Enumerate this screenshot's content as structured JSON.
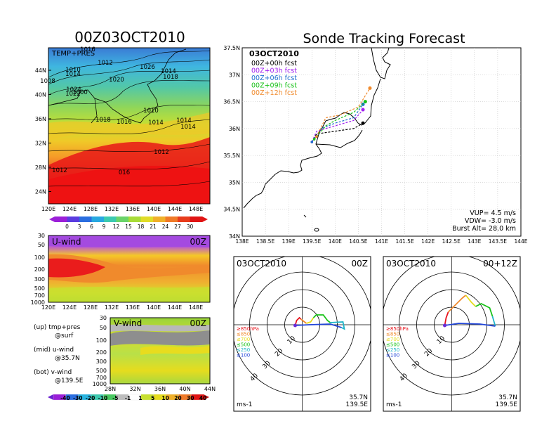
{
  "left": {
    "title": "00Z03OCT2010",
    "panel1": {
      "label": "TEMP+PRES",
      "lat_ticks": [
        "44N",
        "40N",
        "36N",
        "32N",
        "28N",
        "24N"
      ],
      "lon_ticks": [
        "120E",
        "124E",
        "128E",
        "132E",
        "136E",
        "140E",
        "144E",
        "148E"
      ],
      "isobars": [
        "1016",
        "1012",
        "1010",
        "1014",
        "1008",
        "1000",
        "1022",
        "1024",
        "1026",
        "1014",
        "1018",
        "1020",
        "1010",
        "1014",
        "1018",
        "1016",
        "1014",
        "1014",
        "1012",
        "016",
        "1012"
      ],
      "colorbar_ticks": [
        "0",
        "3",
        "6",
        "9",
        "12",
        "15",
        "18",
        "21",
        "24",
        "27",
        "30"
      ]
    },
    "panel2": {
      "label": "U-wind",
      "time": "00Z",
      "pressure_ticks": [
        "30",
        "50",
        "100",
        "200",
        "300",
        "500",
        "700",
        "1000"
      ],
      "lon_ticks": [
        "120E",
        "124E",
        "128E",
        "132E",
        "136E",
        "140E",
        "144E",
        "148E"
      ]
    },
    "panel3": {
      "label": "V-wind",
      "time": "00Z",
      "pressure_ticks": [
        "30",
        "50",
        "100",
        "200",
        "300",
        "500",
        "700",
        "1000"
      ],
      "lat_ticks": [
        "28N",
        "32N",
        "36N",
        "40N",
        "44N"
      ],
      "colorbar_ticks": [
        "-40",
        "-30",
        "-20",
        "-10",
        "-5",
        "-1",
        "1",
        "5",
        "10",
        "20",
        "30",
        "40"
      ]
    },
    "notes": {
      "up": "(up) tmp+pres",
      "up2": "@surf",
      "mid": "(mid) u-wind",
      "mid2": "@35.7N",
      "bot": "(bot) v-wind",
      "bot2": "@139.5E"
    }
  },
  "right": {
    "title": "Sonde Tracking Forecast",
    "map": {
      "date": "03OCT2010",
      "legend": [
        {
          "label": "00Z+00h fcst",
          "color": "#000000"
        },
        {
          "label": "00Z+03h fcst",
          "color": "#a020f0"
        },
        {
          "label": "00Z+06h fcst",
          "color": "#1e6fd0"
        },
        {
          "label": "00Z+09h fcst",
          "color": "#19c219"
        },
        {
          "label": "00Z+12h fcst",
          "color": "#f08a2c"
        }
      ],
      "lat_ticks": [
        "37.5N",
        "37N",
        "36.5N",
        "36N",
        "35.5N",
        "35N",
        "34.5N",
        "34N"
      ],
      "lon_ticks": [
        "138E",
        "138.5E",
        "139E",
        "139.5E",
        "140E",
        "140.5E",
        "141E",
        "141.5E",
        "142E",
        "142.5E",
        "143E",
        "143.5E",
        "144E"
      ],
      "info": {
        "vup": "VUP=  4.5 m/s",
        "vdw": "VDW= -3.0 m/s",
        "burst": "Burst Alt= 28.0 km"
      }
    },
    "hodo1": {
      "date": "03OCT2010",
      "time": "00Z",
      "unit": "ms-1",
      "loc1": "35.7N",
      "loc2": "139.5E",
      "ring_labels": [
        "10",
        "20",
        "30",
        "40"
      ]
    },
    "hodo2": {
      "date": "03OCT2010",
      "time": "00+12Z",
      "unit": "ms-1",
      "loc1": "35.7N",
      "loc2": "139.5E",
      "ring_labels": [
        "10",
        "20",
        "30",
        "40"
      ]
    },
    "hodo_legend": [
      {
        "label": "≥850hPa",
        "color": "#e8141e"
      },
      {
        "label": "≤850",
        "color": "#f08a2c"
      },
      {
        "label": "≤700",
        "color": "#e6dc1e"
      },
      {
        "label": "≤500",
        "color": "#19c219"
      },
      {
        "label": "≤250",
        "color": "#1eb4c8"
      },
      {
        "label": "≤100",
        "color": "#2246d8"
      }
    ]
  },
  "chart_data": [
    {
      "type": "heatmap",
      "title": "00Z03OCT2010",
      "label": "TEMP+PRES",
      "xlim": [
        120,
        150
      ],
      "ylim": [
        22,
        47
      ],
      "colorbar": [
        0,
        3,
        6,
        9,
        12,
        15,
        18,
        21,
        24,
        27,
        30
      ]
    },
    {
      "type": "heatmap",
      "label": "U-wind",
      "xlim": [
        120,
        150
      ],
      "ylim": [
        1000,
        30
      ]
    },
    {
      "type": "heatmap",
      "label": "V-wind",
      "xlim": [
        28,
        44
      ],
      "ylim": [
        1000,
        30
      ],
      "colorbar": [
        -40,
        -30,
        -20,
        -10,
        -5,
        -1,
        1,
        5,
        10,
        20,
        30,
        40
      ]
    },
    {
      "type": "line",
      "title": "Sonde Tracking Forecast",
      "xlim": [
        138,
        144
      ],
      "ylim": [
        34,
        37.5
      ],
      "series": [
        {
          "name": "00Z+00h fcst",
          "x": [
            139.5,
            139.6,
            140.0,
            140.4,
            140.6
          ],
          "y": [
            35.75,
            35.9,
            35.95,
            36.0,
            36.1
          ]
        },
        {
          "name": "00Z+03h fcst",
          "x": [
            139.5,
            139.6,
            140.0,
            140.4,
            140.6
          ],
          "y": [
            35.75,
            35.95,
            36.05,
            36.15,
            36.35
          ]
        },
        {
          "name": "00Z+06h fcst",
          "x": [
            139.5,
            139.7,
            140.0,
            140.4,
            140.6
          ],
          "y": [
            35.75,
            36.0,
            36.1,
            36.2,
            36.45
          ]
        },
        {
          "name": "00Z+09h fcst",
          "x": [
            139.55,
            139.8,
            140.0,
            140.4,
            140.65
          ],
          "y": [
            35.8,
            36.05,
            36.15,
            36.3,
            36.5
          ]
        },
        {
          "name": "00Z+12h fcst",
          "x": [
            139.6,
            139.8,
            140.1,
            140.5,
            140.75
          ],
          "y": [
            35.85,
            36.2,
            36.25,
            36.4,
            36.75
          ]
        }
      ]
    }
  ]
}
